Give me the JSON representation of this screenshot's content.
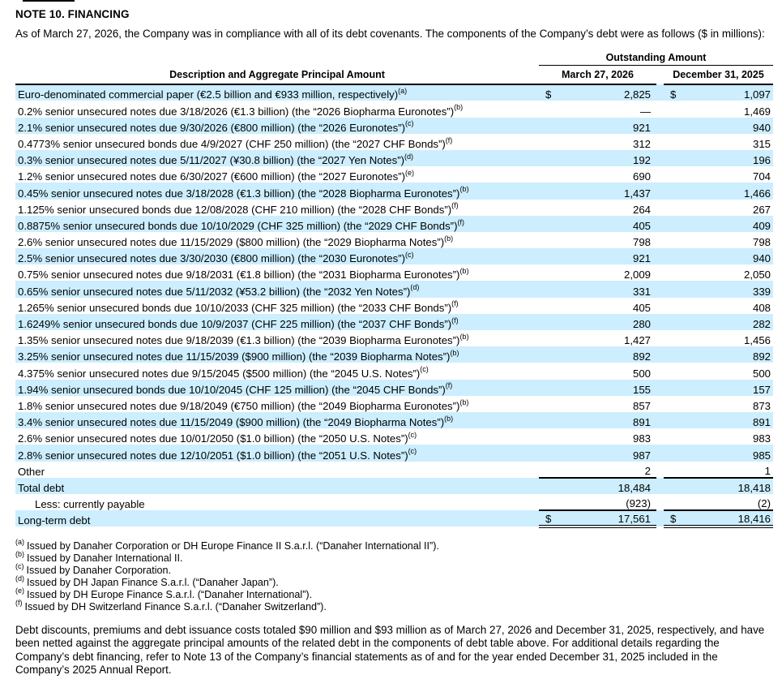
{
  "note": {
    "title": "NOTE 10. FINANCING",
    "intro": "As of March 27, 2026, the Company was in compliance with all of its debt covenants. The components of the Company’s debt were as follows ($ in millions):",
    "closing": "Debt discounts, premiums and debt issuance costs totaled $90 million and $93 million as of March 27, 2026 and December 31, 2025, respectively, and have been netted against the aggregate principal amounts of the related debt in the components of debt table above. For additional details regarding the Company’s debt financing, refer to Note 13 of the Company’s financial statements as of and for the year ended December 31, 2025 included in the Company’s 2025 Annual Report."
  },
  "table": {
    "group_header": "Outstanding Amount",
    "description_header": "Description and Aggregate Principal Amount",
    "col1_header": "March 27, 2026",
    "col2_header": "December 31, 2025",
    "rows": [
      {
        "desc": "Euro-denominated commercial paper (€2.5 billion and €933 million, respectively)",
        "sup": "(a)",
        "d1": "$",
        "v1": "2,825",
        "d2": "$",
        "v2": "1,097",
        "type": "item"
      },
      {
        "desc": "0.2% senior unsecured notes due 3/18/2026 (€1.3 billion) (the “2026 Biopharma Euronotes”)",
        "sup": "(b)",
        "v1": "—",
        "v2": "1,469",
        "type": "item"
      },
      {
        "desc": "2.1% senior unsecured notes due 9/30/2026 (€800 million) (the “2026 Euronotes”)",
        "sup": "(c)",
        "v1": "921",
        "v2": "940",
        "type": "item"
      },
      {
        "desc": "0.4773% senior unsecured bonds due 4/9/2027 (CHF 250 million) (the “2027 CHF Bonds”)",
        "sup": "(f)",
        "v1": "312",
        "v2": "315",
        "type": "item"
      },
      {
        "desc": "0.3% senior unsecured notes due 5/11/2027 (¥30.8 billion) (the “2027 Yen Notes”)",
        "sup": "(d)",
        "v1": "192",
        "v2": "196",
        "type": "item"
      },
      {
        "desc": "1.2% senior unsecured notes due 6/30/2027 (€600 million) (the “2027 Euronotes”)",
        "sup": "(e)",
        "v1": "690",
        "v2": "704",
        "type": "item"
      },
      {
        "desc": "0.45% senior unsecured notes due 3/18/2028 (€1.3 billion) (the “2028 Biopharma Euronotes”)",
        "sup": "(b)",
        "v1": "1,437",
        "v2": "1,466",
        "type": "item"
      },
      {
        "desc": "1.125% senior unsecured bonds due 12/08/2028 (CHF 210 million) (the “2028 CHF Bonds”)",
        "sup": "(f)",
        "v1": "264",
        "v2": "267",
        "type": "item"
      },
      {
        "desc": "0.8875% senior unsecured bonds due 10/10/2029 (CHF 325 million) (the “2029 CHF Bonds”)",
        "sup": "(f)",
        "v1": "405",
        "v2": "409",
        "type": "item"
      },
      {
        "desc": "2.6% senior unsecured notes due 11/15/2029 ($800 million) (the “2029 Biopharma Notes”)",
        "sup": "(b)",
        "v1": "798",
        "v2": "798",
        "type": "item"
      },
      {
        "desc": "2.5% senior unsecured notes due 3/30/2030 (€800 million) (the “2030 Euronotes”)",
        "sup": "(c)",
        "v1": "921",
        "v2": "940",
        "type": "item"
      },
      {
        "desc": "0.75% senior unsecured notes due 9/18/2031 (€1.8 billion) (the “2031 Biopharma Euronotes”)",
        "sup": "(b)",
        "v1": "2,009",
        "v2": "2,050",
        "type": "item"
      },
      {
        "desc": "0.65% senior unsecured notes due 5/11/2032 (¥53.2 billion) (the “2032 Yen Notes”)",
        "sup": "(d)",
        "v1": "331",
        "v2": "339",
        "type": "item"
      },
      {
        "desc": "1.265% senior unsecured bonds due 10/10/2033 (CHF 325 million) (the “2033 CHF Bonds”)",
        "sup": "(f)",
        "v1": "405",
        "v2": "408",
        "type": "item"
      },
      {
        "desc": "1.6249% senior unsecured bonds due 10/9/2037 (CHF 225 million) (the “2037 CHF Bonds”)",
        "sup": "(f)",
        "v1": "280",
        "v2": "282",
        "type": "item"
      },
      {
        "desc": "1.35% senior unsecured notes due 9/18/2039 (€1.3 billion) (the “2039 Biopharma Euronotes”)",
        "sup": "(b)",
        "v1": "1,427",
        "v2": "1,456",
        "type": "item"
      },
      {
        "desc": "3.25% senior unsecured notes due 11/15/2039 ($900 million) (the “2039 Biopharma Notes”)",
        "sup": "(b)",
        "v1": "892",
        "v2": "892",
        "type": "item"
      },
      {
        "desc": "4.375% senior unsecured notes due 9/15/2045 ($500 million) (the “2045 U.S. Notes”)",
        "sup": "(c)",
        "v1": "500",
        "v2": "500",
        "type": "item"
      },
      {
        "desc": "1.94% senior unsecured bonds due 10/10/2045 (CHF 125 million) (the “2045 CHF Bonds”)",
        "sup": "(f)",
        "v1": "155",
        "v2": "157",
        "type": "item"
      },
      {
        "desc": "1.8% senior unsecured notes due 9/18/2049 (€750 million) (the “2049 Biopharma Euronotes”)",
        "sup": "(b)",
        "v1": "857",
        "v2": "873",
        "type": "item"
      },
      {
        "desc": "3.4% senior unsecured notes due 11/15/2049 ($900 million) (the “2049 Biopharma Notes”)",
        "sup": "(b)",
        "v1": "891",
        "v2": "891",
        "type": "item"
      },
      {
        "desc": "2.6% senior unsecured notes due 10/01/2050 ($1.0 billion) (the “2050 U.S. Notes”)",
        "sup": "(c)",
        "v1": "983",
        "v2": "983",
        "type": "item"
      },
      {
        "desc": "2.8% senior unsecured notes due 12/10/2051 ($1.0 billion) (the “2051 U.S. Notes”)",
        "sup": "(c)",
        "v1": "987",
        "v2": "985",
        "type": "item"
      },
      {
        "desc": "Other",
        "v1": "2",
        "v2": "1",
        "type": "other"
      },
      {
        "desc": "Total debt",
        "v1": "18,484",
        "v2": "18,418",
        "type": "total"
      },
      {
        "desc": "Less: currently payable",
        "v1": "(923)",
        "v2": "(2)",
        "type": "less"
      },
      {
        "desc": "Long-term debt",
        "d1": "$",
        "v1": "17,561",
        "d2": "$",
        "v2": "18,416",
        "type": "grand"
      }
    ]
  },
  "footnotes": [
    {
      "marker": "(a)",
      "text": "Issued by Danaher Corporation or DH Europe Finance II S.a.r.l. (“Danaher International II”)."
    },
    {
      "marker": "(b)",
      "text": "Issued by Danaher International II."
    },
    {
      "marker": "(c)",
      "text": "Issued by Danaher Corporation."
    },
    {
      "marker": "(d)",
      "text": "Issued by DH Japan Finance S.a.r.l. (“Danaher Japan”)."
    },
    {
      "marker": "(e)",
      "text": "Issued by DH Europe Finance S.a.r.l. (“Danaher International”)."
    },
    {
      "marker": "(f)",
      "text": "Issued by DH Switzerland Finance S.a.r.l. (“Danaher Switzerland”)."
    }
  ],
  "colors": {
    "row_highlight": "#cceeff",
    "rule": "#000000",
    "text": "#000000",
    "background": "#ffffff"
  }
}
